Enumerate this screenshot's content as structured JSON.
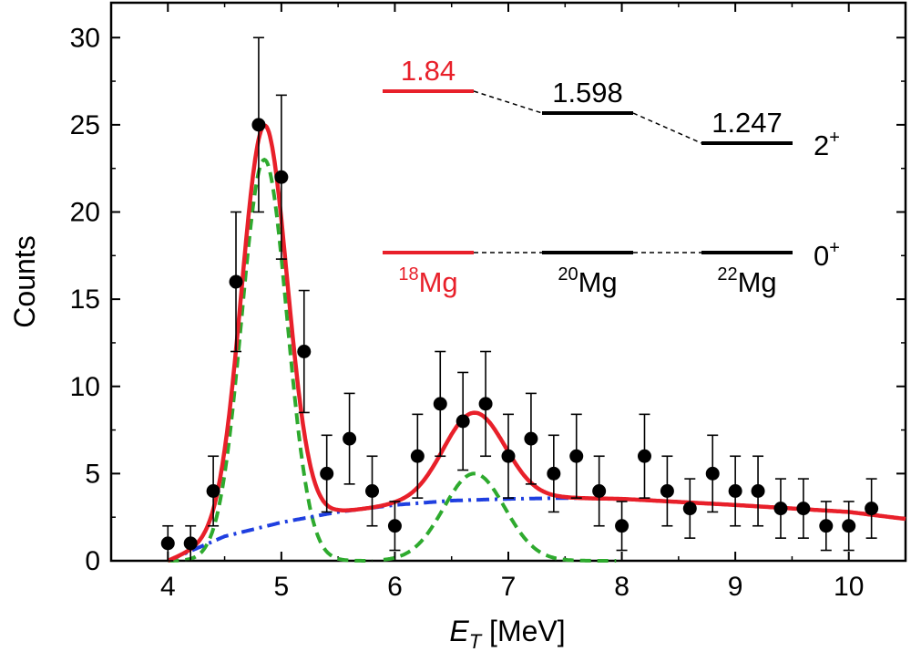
{
  "chart_data": {
    "type": "scatter",
    "xlabel_main": "E",
    "xlabel_sub": "T",
    "xlabel_unit": " [MeV]",
    "ylabel": "Counts",
    "xlim": [
      3.5,
      10.5
    ],
    "ylim": [
      0,
      32
    ],
    "xticks": [
      "4",
      "5",
      "6",
      "7",
      "8",
      "9",
      "10"
    ],
    "yticks": [
      "0",
      "5",
      "10",
      "15",
      "20",
      "25",
      "30"
    ],
    "points": [
      {
        "x": 4.0,
        "y": 1,
        "err": 1.0
      },
      {
        "x": 4.2,
        "y": 1,
        "err": 1.0
      },
      {
        "x": 4.4,
        "y": 4,
        "err": 2.0
      },
      {
        "x": 4.6,
        "y": 16,
        "err": 4.0
      },
      {
        "x": 4.8,
        "y": 25,
        "err": 5.0
      },
      {
        "x": 5.0,
        "y": 22,
        "err": 4.7
      },
      {
        "x": 5.2,
        "y": 12,
        "err": 3.5
      },
      {
        "x": 5.4,
        "y": 5,
        "err": 2.2
      },
      {
        "x": 5.6,
        "y": 7,
        "err": 2.6
      },
      {
        "x": 5.8,
        "y": 4,
        "err": 2.0
      },
      {
        "x": 6.0,
        "y": 2,
        "err": 1.4
      },
      {
        "x": 6.2,
        "y": 6,
        "err": 2.4
      },
      {
        "x": 6.4,
        "y": 9,
        "err": 3.0
      },
      {
        "x": 6.6,
        "y": 8,
        "err": 2.8
      },
      {
        "x": 6.8,
        "y": 9,
        "err": 3.0
      },
      {
        "x": 7.0,
        "y": 6,
        "err": 2.4
      },
      {
        "x": 7.2,
        "y": 7,
        "err": 2.6
      },
      {
        "x": 7.4,
        "y": 5,
        "err": 2.2
      },
      {
        "x": 7.6,
        "y": 6,
        "err": 2.4
      },
      {
        "x": 7.8,
        "y": 4,
        "err": 2.0
      },
      {
        "x": 8.0,
        "y": 2,
        "err": 1.4
      },
      {
        "x": 8.2,
        "y": 6,
        "err": 2.4
      },
      {
        "x": 8.4,
        "y": 4,
        "err": 2.0
      },
      {
        "x": 8.6,
        "y": 3,
        "err": 1.7
      },
      {
        "x": 8.8,
        "y": 5,
        "err": 2.2
      },
      {
        "x": 9.0,
        "y": 4,
        "err": 2.0
      },
      {
        "x": 9.2,
        "y": 4,
        "err": 2.0
      },
      {
        "x": 9.4,
        "y": 3,
        "err": 1.7
      },
      {
        "x": 9.6,
        "y": 3,
        "err": 1.7
      },
      {
        "x": 9.8,
        "y": 2,
        "err": 1.4
      },
      {
        "x": 10.0,
        "y": 2,
        "err": 1.4
      },
      {
        "x": 10.2,
        "y": 3,
        "err": 1.7
      }
    ],
    "curves": {
      "total_fit": {
        "color": "#e8202a",
        "style": "solid"
      },
      "peak_components": {
        "color": "#2eaa2e",
        "style": "dashed"
      },
      "background": {
        "color": "#1f3fe0",
        "style": "dash-dot"
      }
    },
    "fit_model": {
      "peak1": {
        "center": 4.85,
        "sigma": 0.2,
        "amplitude": 23
      },
      "peak2": {
        "center": 6.7,
        "sigma": 0.27,
        "amplitude": 5
      },
      "background_points": [
        [
          4.0,
          0
        ],
        [
          4.5,
          1.4
        ],
        [
          5.0,
          2.2
        ],
        [
          5.5,
          2.8
        ],
        [
          6.0,
          3.2
        ],
        [
          6.5,
          3.45
        ],
        [
          7.0,
          3.55
        ],
        [
          7.5,
          3.6
        ],
        [
          8.0,
          3.55
        ],
        [
          9.0,
          3.2
        ],
        [
          10.0,
          2.8
        ],
        [
          10.5,
          2.4
        ]
      ]
    },
    "level_scheme": {
      "levels_2plus": [
        {
          "nucleus": "18",
          "value": "1.84",
          "color": "#e8202a"
        },
        {
          "nucleus": "20",
          "value": "1.598",
          "color": "#000000"
        },
        {
          "nucleus": "22",
          "value": "1.247",
          "color": "#000000"
        }
      ],
      "element": "Mg",
      "spin_2": "2",
      "spin_0": "0",
      "parity": "+"
    }
  }
}
